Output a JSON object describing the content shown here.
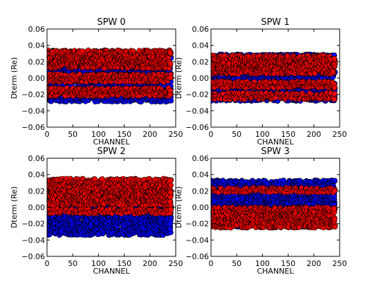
{
  "chart_data": [
    {
      "type": "scatter",
      "title": "SPW 0",
      "xlabel": "CHANNEL",
      "ylabel": "Dterm (Re)",
      "xlim": [
        0,
        250
      ],
      "ylim": [
        -0.06,
        0.06
      ],
      "x_ticks": [
        "0",
        "50",
        "100",
        "150",
        "200",
        "250"
      ],
      "y_ticks": [
        "0.06",
        "0.04",
        "0.02",
        "0.00",
        "−0.02",
        "−0.04",
        "−0.06"
      ],
      "channel_range": [
        0,
        242
      ],
      "series": [
        {
          "color": "#0000ff",
          "bands": [
            [
              0.02,
              0.026
            ],
            [
              -0.018,
              0.012
            ],
            [
              -0.029,
              -0.022
            ]
          ]
        },
        {
          "color": "#ff0000",
          "bands": [
            [
              0.012,
              0.034
            ],
            [
              -0.005,
              0.005
            ],
            [
              -0.022,
              -0.012
            ]
          ]
        }
      ]
    },
    {
      "type": "scatter",
      "title": "SPW 1",
      "xlabel": "CHANNEL",
      "ylabel": "Dterm (Re)",
      "xlim": [
        0,
        250
      ],
      "ylim": [
        -0.06,
        0.06
      ],
      "x_ticks": [
        "0",
        "50",
        "100",
        "150",
        "200",
        "250"
      ],
      "y_ticks": [
        "0.06",
        "0.04",
        "0.02",
        "0.00",
        "−0.02",
        "−0.04",
        "−0.06"
      ],
      "channel_range": [
        0,
        242
      ],
      "series": [
        {
          "color": "#0000ff",
          "bands": [
            [
              0.022,
              0.029
            ],
            [
              -0.028,
              0.008
            ]
          ]
        },
        {
          "color": "#ff0000",
          "bands": [
            [
              0.005,
              0.028
            ],
            [
              -0.012,
              -0.004
            ],
            [
              -0.026,
              -0.018
            ]
          ]
        }
      ]
    },
    {
      "type": "scatter",
      "title": "SPW 2",
      "xlabel": "CHANNEL",
      "ylabel": "Dterm (Re)",
      "xlim": [
        0,
        250
      ],
      "ylim": [
        -0.06,
        0.06
      ],
      "x_ticks": [
        "0",
        "50",
        "100",
        "150",
        "200",
        "250"
      ],
      "y_ticks": [
        "0.06",
        "0.04",
        "0.02",
        "0.00",
        "−0.02",
        "−0.04",
        "−0.06"
      ],
      "channel_range": [
        0,
        242
      ],
      "series": [
        {
          "color": "#0000ff",
          "bands": [
            [
              -0.034,
              0.004
            ],
            [
              0.018,
              0.024
            ]
          ]
        },
        {
          "color": "#ff0000",
          "bands": [
            [
              0.002,
              0.035
            ],
            [
              -0.008,
              -0.002
            ]
          ]
        }
      ]
    },
    {
      "type": "scatter",
      "title": "SPW 3",
      "xlabel": "CHANNEL",
      "ylabel": "Dterm (Re)",
      "xlim": [
        0,
        250
      ],
      "ylim": [
        -0.06,
        0.06
      ],
      "x_ticks": [
        "0",
        "50",
        "100",
        "150",
        "200",
        "250"
      ],
      "y_ticks": [
        "0.06",
        "0.04",
        "0.02",
        "0.00",
        "−0.02",
        "−0.04",
        "−0.06"
      ],
      "channel_range": [
        0,
        242
      ],
      "series": [
        {
          "color": "#0000ff",
          "bands": [
            [
              -0.004,
              0.033
            ],
            [
              -0.024,
              -0.016
            ]
          ]
        },
        {
          "color": "#ff0000",
          "bands": [
            [
              -0.025,
              0.0
            ],
            [
              0.018,
              0.024
            ]
          ]
        }
      ]
    }
  ]
}
